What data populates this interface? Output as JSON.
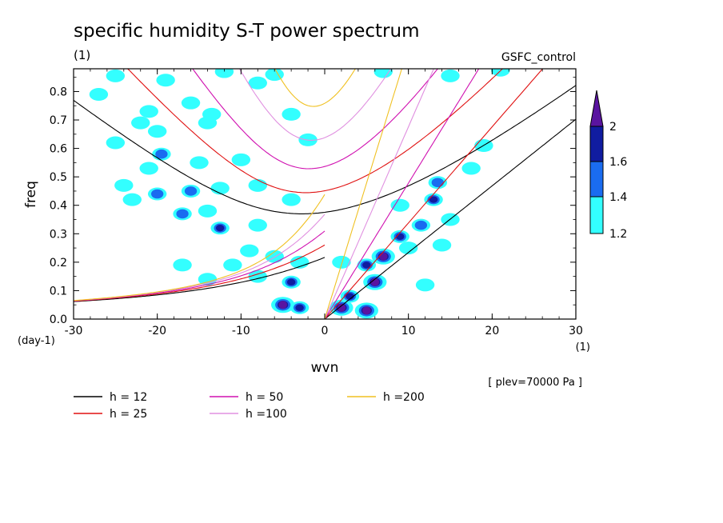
{
  "chart_data": {
    "type": "contour",
    "title": "specific humidity S-T power spectrum",
    "subtitle_left": "(1)",
    "subtitle_right": "GSFC_control",
    "xlabel": "wvn",
    "ylabel": "freq",
    "x_unit": "(1)",
    "y_unit": "(day-1)",
    "xlim": [
      -30,
      30
    ],
    "ylim": [
      0,
      0.88
    ],
    "x_ticks": [
      "-30",
      "-20",
      "-10",
      "0",
      "10",
      "20",
      "30"
    ],
    "y_ticks": [
      "0.0",
      "0.1",
      "0.2",
      "0.3",
      "0.4",
      "0.5",
      "0.6",
      "0.7",
      "0.8"
    ],
    "x_tick_values": [
      -30,
      -20,
      -10,
      0,
      10,
      20,
      30
    ],
    "y_tick_values": [
      0,
      0.1,
      0.2,
      0.3,
      0.4,
      0.5,
      0.6,
      0.7,
      0.8
    ],
    "annotation": "[ plev=70000 Pa ]",
    "colorbar": {
      "levels": [
        "1.2",
        "1.4",
        "1.6",
        "2"
      ],
      "level_values": [
        1.2,
        1.4,
        1.6,
        2.0
      ],
      "colors": [
        "#33ffff",
        "#1a6cf0",
        "#101ca0",
        "#5a14a0"
      ]
    },
    "series": [
      {
        "name": "h = 12",
        "h": 12,
        "color": "#000000"
      },
      {
        "name": "h = 25",
        "h": 25,
        "color": "#e01010"
      },
      {
        "name": "h = 50",
        "h": 50,
        "color": "#d010b0"
      },
      {
        "name": "h =100",
        "h": 100,
        "color": "#e090e0"
      },
      {
        "name": "h =200",
        "h": 200,
        "color": "#f0c020"
      }
    ],
    "blobs": [
      {
        "x": -25,
        "y": 0.855,
        "level": 1
      },
      {
        "x": -19,
        "y": 0.84,
        "level": 1
      },
      {
        "x": -12,
        "y": 0.87,
        "level": 1
      },
      {
        "x": -8,
        "y": 0.83,
        "level": 1
      },
      {
        "x": -6,
        "y": 0.86,
        "level": 1
      },
      {
        "x": 7,
        "y": 0.87,
        "level": 1
      },
      {
        "x": 15,
        "y": 0.855,
        "level": 1
      },
      {
        "x": 21,
        "y": 0.875,
        "level": 1
      },
      {
        "x": -27,
        "y": 0.79,
        "level": 1
      },
      {
        "x": -16,
        "y": 0.76,
        "level": 1
      },
      {
        "x": -13.5,
        "y": 0.72,
        "level": 1
      },
      {
        "x": -21,
        "y": 0.73,
        "level": 1
      },
      {
        "x": -22,
        "y": 0.69,
        "level": 1
      },
      {
        "x": -20,
        "y": 0.66,
        "level": 1
      },
      {
        "x": -14,
        "y": 0.69,
        "level": 1
      },
      {
        "x": -4,
        "y": 0.72,
        "level": 1
      },
      {
        "x": -25,
        "y": 0.62,
        "level": 1
      },
      {
        "x": -19.5,
        "y": 0.58,
        "level": 2
      },
      {
        "x": -21,
        "y": 0.53,
        "level": 1
      },
      {
        "x": -15,
        "y": 0.55,
        "level": 1
      },
      {
        "x": -10,
        "y": 0.56,
        "level": 1
      },
      {
        "x": -2,
        "y": 0.63,
        "level": 1
      },
      {
        "x": -24,
        "y": 0.47,
        "level": 1
      },
      {
        "x": -20,
        "y": 0.44,
        "level": 2
      },
      {
        "x": -16,
        "y": 0.45,
        "level": 2
      },
      {
        "x": -12.5,
        "y": 0.46,
        "level": 1
      },
      {
        "x": -8,
        "y": 0.47,
        "level": 1
      },
      {
        "x": -4,
        "y": 0.42,
        "level": 1
      },
      {
        "x": -23,
        "y": 0.42,
        "level": 1
      },
      {
        "x": -17,
        "y": 0.37,
        "level": 2
      },
      {
        "x": -14,
        "y": 0.38,
        "level": 1
      },
      {
        "x": -12.5,
        "y": 0.32,
        "level": 3
      },
      {
        "x": -8,
        "y": 0.33,
        "level": 1
      },
      {
        "x": -9,
        "y": 0.24,
        "level": 1
      },
      {
        "x": -17,
        "y": 0.19,
        "level": 1
      },
      {
        "x": -11,
        "y": 0.19,
        "level": 1
      },
      {
        "x": -6,
        "y": 0.22,
        "level": 1
      },
      {
        "x": -3,
        "y": 0.2,
        "level": 1
      },
      {
        "x": -14,
        "y": 0.14,
        "level": 1
      },
      {
        "x": -8,
        "y": 0.15,
        "level": 1
      },
      {
        "x": -4,
        "y": 0.13,
        "level": 3
      },
      {
        "x": -5,
        "y": 0.05,
        "level": 4
      },
      {
        "x": -3,
        "y": 0.04,
        "level": 3
      },
      {
        "x": 2,
        "y": 0.04,
        "level": 4
      },
      {
        "x": 3,
        "y": 0.08,
        "level": 3
      },
      {
        "x": 5,
        "y": 0.03,
        "level": 4
      },
      {
        "x": 6,
        "y": 0.13,
        "level": 4
      },
      {
        "x": 7,
        "y": 0.22,
        "level": 4
      },
      {
        "x": 5,
        "y": 0.19,
        "level": 3
      },
      {
        "x": 9,
        "y": 0.29,
        "level": 3
      },
      {
        "x": 11.5,
        "y": 0.33,
        "level": 2
      },
      {
        "x": 10,
        "y": 0.25,
        "level": 1
      },
      {
        "x": 13,
        "y": 0.42,
        "level": 3
      },
      {
        "x": 13.5,
        "y": 0.48,
        "level": 2
      },
      {
        "x": 15,
        "y": 0.35,
        "level": 1
      },
      {
        "x": 17.5,
        "y": 0.53,
        "level": 1
      },
      {
        "x": 19,
        "y": 0.61,
        "level": 1
      },
      {
        "x": 9,
        "y": 0.4,
        "level": 1
      },
      {
        "x": 14,
        "y": 0.26,
        "level": 1
      },
      {
        "x": 12,
        "y": 0.12,
        "level": 1
      },
      {
        "x": 2,
        "y": 0.2,
        "level": 1
      }
    ]
  }
}
